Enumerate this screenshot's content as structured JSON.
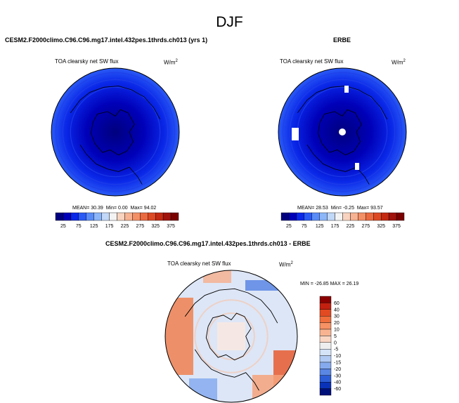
{
  "page": {
    "title": "DJF"
  },
  "panels": [
    {
      "id": "model",
      "header": "CESM2.F2000climo.C96.C96.mg17.intel.432pes.1thrds.ch013 (yrs 1)",
      "variable": "TOA clearsky net SW flux",
      "units_base": "W/m",
      "units_exp": "2",
      "stats": {
        "mean_label": "MEAN=",
        "mean": "30.39",
        "min_label": "Min=",
        "min": "0.00",
        "max_label": "Max=",
        "max": "94.02"
      }
    },
    {
      "id": "obs",
      "header": "ERBE",
      "variable": "TOA clearsky net SW flux",
      "units_base": "W/m",
      "units_exp": "2",
      "stats": {
        "mean_label": "MEAN=",
        "mean": "28.53",
        "min_label": "Min=",
        "min": "-0.25",
        "max_label": "Max=",
        "max": "93.57"
      }
    },
    {
      "id": "diff",
      "header": "CESM2.F2000climo.C96.C96.mg17.intel.432pes.1thrds.ch013 - ERBE",
      "variable": "TOA clearsky net SW flux",
      "units_base": "W/m",
      "units_exp": "2",
      "minmax_text": "MIN = -26.85 MAX =  26.19"
    }
  ],
  "colorbars": {
    "abs": {
      "labels": [
        "25",
        "75",
        "125",
        "175",
        "225",
        "275",
        "325",
        "375"
      ],
      "colors": [
        "#00007f",
        "#0000b8",
        "#0a28e8",
        "#2a5af5",
        "#5a8cf8",
        "#8cb6f8",
        "#c2d8f8",
        "#f3f3f3",
        "#f8d4c0",
        "#f6b292",
        "#f39066",
        "#ea6a40",
        "#dc4a24",
        "#c32a12",
        "#a0120c",
        "#7a0000"
      ]
    },
    "diff": {
      "labels": [
        "60",
        "40",
        "30",
        "20",
        "10",
        "5",
        "0",
        "-5",
        "-10",
        "-15",
        "-20",
        "-30",
        "-40",
        "-60"
      ],
      "colors": [
        "#8b0000",
        "#c42010",
        "#e24a22",
        "#f06e3c",
        "#f69264",
        "#f8b492",
        "#f9d6c4",
        "#eeeeee",
        "#d6e4f8",
        "#b0caf4",
        "#86aaee",
        "#5a86e4",
        "#2c5cd6",
        "#0a32b8",
        "#00107a"
      ]
    }
  },
  "chart_data": [
    {
      "type": "heatmap",
      "projection": "north polar stereographic",
      "title": "CESM2.F2000climo.C96.C96.mg17.intel.432pes.1thrds.ch013 (yrs 1)",
      "variable": "TOA clearsky net SW flux",
      "units": "W/m2",
      "mean": 30.39,
      "min": 0.0,
      "max": 94.02,
      "colorbar_levels": [
        25,
        50,
        75,
        100,
        125,
        150,
        175,
        200,
        225,
        250,
        275,
        300,
        325,
        350,
        375
      ]
    },
    {
      "type": "heatmap",
      "projection": "north polar stereographic",
      "title": "ERBE",
      "variable": "TOA clearsky net SW flux",
      "units": "W/m2",
      "mean": 28.53,
      "min": -0.25,
      "max": 93.57,
      "colorbar_levels": [
        25,
        50,
        75,
        100,
        125,
        150,
        175,
        200,
        225,
        250,
        275,
        300,
        325,
        350,
        375
      ]
    },
    {
      "type": "heatmap",
      "projection": "north polar stereographic",
      "title": "CESM2.F2000climo.C96.C96.mg17.intel.432pes.1thrds.ch013 - ERBE",
      "variable": "TOA clearsky net SW flux",
      "units": "W/m2",
      "min": -26.85,
      "max": 26.19,
      "colorbar_levels": [
        -60,
        -40,
        -30,
        -20,
        -15,
        -10,
        -5,
        0,
        5,
        10,
        20,
        30,
        40,
        60
      ]
    }
  ]
}
